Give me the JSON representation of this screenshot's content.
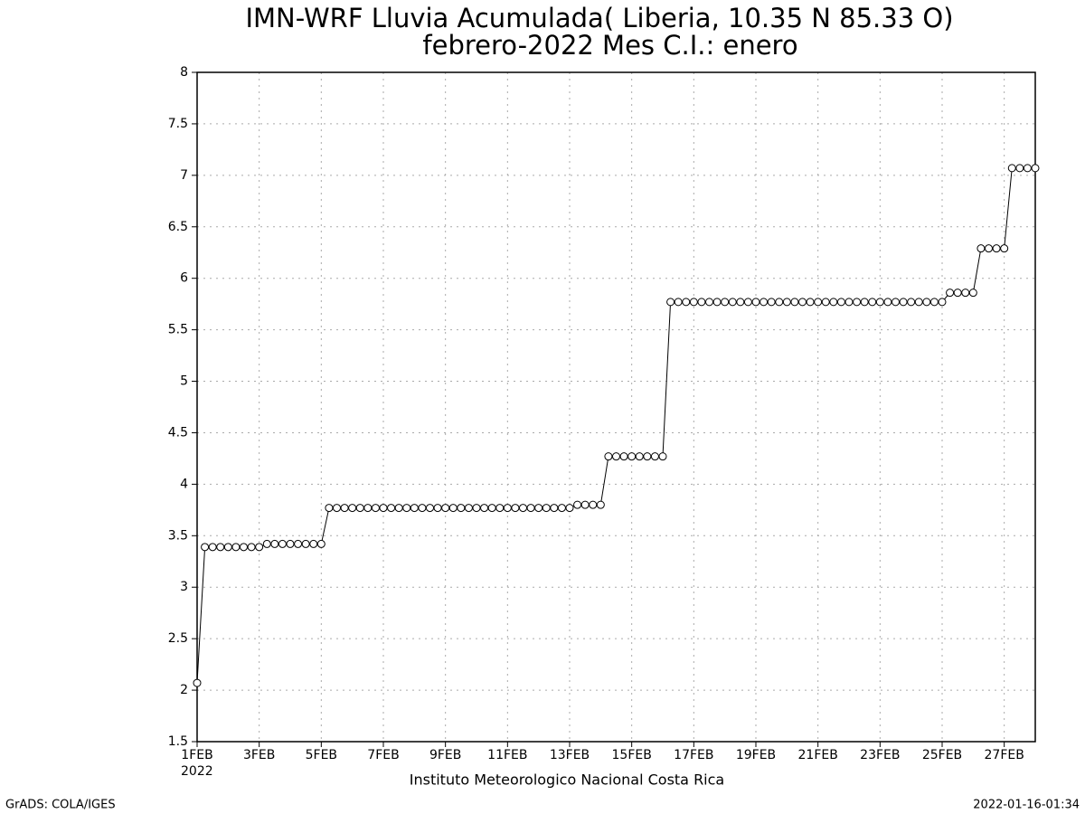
{
  "chart_data": {
    "type": "line",
    "title": "IMN-WRF  Lluvia Acumulada( Liberia, 10.35  N 85.33  O)",
    "subtitle": "febrero-2022 Mes C.I.: enero",
    "x_axis_year": "2022",
    "x_label": "Instituto Meteorologico Nacional Costa Rica",
    "footer_left": "GrADS: COLA/IGES",
    "footer_right": "2022-01-16-01:34",
    "grid": true,
    "color": "#000000",
    "xlim": [
      1,
      28
    ],
    "ylim": [
      1.5,
      8
    ],
    "xticks": [
      {
        "value": 1,
        "label": "1FEB"
      },
      {
        "value": 3,
        "label": "3FEB"
      },
      {
        "value": 5,
        "label": "5FEB"
      },
      {
        "value": 7,
        "label": "7FEB"
      },
      {
        "value": 9,
        "label": "9FEB"
      },
      {
        "value": 11,
        "label": "11FEB"
      },
      {
        "value": 13,
        "label": "13FEB"
      },
      {
        "value": 15,
        "label": "15FEB"
      },
      {
        "value": 17,
        "label": "17FEB"
      },
      {
        "value": 19,
        "label": "19FEB"
      },
      {
        "value": 21,
        "label": "21FEB"
      },
      {
        "value": 23,
        "label": "23FEB"
      },
      {
        "value": 25,
        "label": "25FEB"
      },
      {
        "value": 27,
        "label": "27FEB"
      }
    ],
    "yticks": [
      1.5,
      2,
      2.5,
      3,
      3.5,
      4,
      4.5,
      5,
      5.5,
      6,
      6.5,
      7,
      7.5,
      8
    ],
    "x": [
      1,
      1.25,
      1.5,
      1.75,
      2,
      2.25,
      2.5,
      2.75,
      3,
      3.25,
      3.5,
      3.75,
      4,
      4.25,
      4.5,
      4.75,
      5,
      5.25,
      5.5,
      5.75,
      6,
      6.25,
      6.5,
      6.75,
      7,
      7.25,
      7.5,
      7.75,
      8,
      8.25,
      8.5,
      8.75,
      9,
      9.25,
      9.5,
      9.75,
      10,
      10.25,
      10.5,
      10.75,
      11,
      11.25,
      11.5,
      11.75,
      12,
      12.25,
      12.5,
      12.75,
      13,
      13.25,
      13.5,
      13.75,
      14,
      14.25,
      14.5,
      14.75,
      15,
      15.25,
      15.5,
      15.75,
      16,
      16.25,
      16.5,
      16.75,
      17,
      17.25,
      17.5,
      17.75,
      18,
      18.25,
      18.5,
      18.75,
      19,
      19.25,
      19.5,
      19.75,
      20,
      20.25,
      20.5,
      20.75,
      21,
      21.25,
      21.5,
      21.75,
      22,
      22.25,
      22.5,
      22.75,
      23,
      23.25,
      23.5,
      23.75,
      24,
      24.25,
      24.5,
      24.75,
      25,
      25.25,
      25.5,
      25.75,
      26,
      26.25,
      26.5,
      26.75,
      27,
      27.25,
      27.5,
      27.75,
      28
    ],
    "values": [
      2.07,
      3.39,
      3.39,
      3.39,
      3.39,
      3.39,
      3.39,
      3.39,
      3.39,
      3.42,
      3.42,
      3.42,
      3.42,
      3.42,
      3.42,
      3.42,
      3.42,
      3.77,
      3.77,
      3.77,
      3.77,
      3.77,
      3.77,
      3.77,
      3.77,
      3.77,
      3.77,
      3.77,
      3.77,
      3.77,
      3.77,
      3.77,
      3.77,
      3.77,
      3.77,
      3.77,
      3.77,
      3.77,
      3.77,
      3.77,
      3.77,
      3.77,
      3.77,
      3.77,
      3.77,
      3.77,
      3.77,
      3.77,
      3.77,
      3.8,
      3.8,
      3.8,
      3.8,
      4.27,
      4.27,
      4.27,
      4.27,
      4.27,
      4.27,
      4.27,
      4.27,
      5.77,
      5.77,
      5.77,
      5.77,
      5.77,
      5.77,
      5.77,
      5.77,
      5.77,
      5.77,
      5.77,
      5.77,
      5.77,
      5.77,
      5.77,
      5.77,
      5.77,
      5.77,
      5.77,
      5.77,
      5.77,
      5.77,
      5.77,
      5.77,
      5.77,
      5.77,
      5.77,
      5.77,
      5.77,
      5.77,
      5.77,
      5.77,
      5.77,
      5.77,
      5.77,
      5.77,
      5.86,
      5.86,
      5.86,
      5.86,
      6.29,
      6.29,
      6.29,
      6.29,
      7.07,
      7.07,
      7.07,
      7.07
    ]
  }
}
